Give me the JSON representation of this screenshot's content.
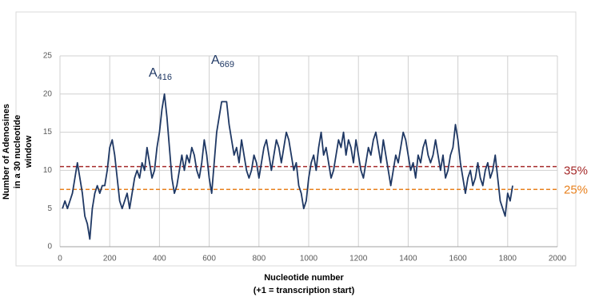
{
  "chart_data": {
    "type": "line",
    "y_label": [
      "Number of Adenosines",
      "in a 30 nucleotide",
      "window"
    ],
    "x_label": [
      "Nucleotide number",
      "(+1 = transcription start)"
    ],
    "annotations": [
      {
        "text": "A",
        "subscript": "416"
      },
      {
        "text": "A",
        "subscript": "669"
      }
    ],
    "color": "#1f3864",
    "x": [
      10,
      20,
      30,
      40,
      50,
      60,
      70,
      80,
      90,
      100,
      110,
      120,
      130,
      140,
      150,
      160,
      170,
      180,
      190,
      200,
      210,
      220,
      230,
      240,
      250,
      260,
      270,
      280,
      290,
      300,
      310,
      320,
      330,
      340,
      350,
      360,
      370,
      380,
      390,
      400,
      410,
      420,
      430,
      440,
      450,
      460,
      470,
      480,
      490,
      500,
      510,
      520,
      530,
      540,
      550,
      560,
      570,
      580,
      590,
      600,
      610,
      620,
      630,
      640,
      650,
      660,
      670,
      680,
      690,
      700,
      710,
      720,
      730,
      740,
      750,
      760,
      770,
      780,
      790,
      800,
      810,
      820,
      830,
      840,
      850,
      860,
      870,
      880,
      890,
      900,
      910,
      920,
      930,
      940,
      950,
      960,
      970,
      980,
      990,
      1000,
      1010,
      1020,
      1030,
      1040,
      1050,
      1060,
      1070,
      1080,
      1090,
      1100,
      1110,
      1120,
      1130,
      1140,
      1150,
      1160,
      1170,
      1180,
      1190,
      1200,
      1210,
      1220,
      1230,
      1240,
      1250,
      1260,
      1270,
      1280,
      1290,
      1300,
      1310,
      1320,
      1330,
      1340,
      1350,
      1360,
      1370,
      1380,
      1390,
      1400,
      1410,
      1420,
      1430,
      1440,
      1450,
      1460,
      1470,
      1480,
      1490,
      1500,
      1510,
      1520,
      1530,
      1540,
      1550,
      1560,
      1570,
      1580,
      1590,
      1600,
      1610,
      1620,
      1630,
      1640,
      1650,
      1660,
      1670,
      1680,
      1690,
      1700,
      1710,
      1720,
      1730,
      1740,
      1750,
      1760,
      1770,
      1780,
      1790,
      1800,
      1810,
      1820
    ],
    "values": [
      5,
      6,
      5,
      6,
      7,
      9,
      11,
      9,
      7,
      4,
      3,
      1,
      5,
      7,
      8,
      7,
      8,
      8,
      10,
      13,
      14,
      12,
      9,
      6,
      5,
      6,
      7,
      5,
      7,
      9,
      10,
      9,
      11,
      10,
      13,
      11,
      9,
      10,
      13,
      15,
      18,
      20,
      17,
      13,
      9,
      7,
      8,
      10,
      12,
      10,
      12,
      11,
      13,
      12,
      10,
      9,
      11,
      14,
      12,
      9,
      7,
      11,
      15,
      17,
      19,
      19,
      19,
      16,
      14,
      12,
      13,
      11,
      14,
      12,
      10,
      9,
      10,
      12,
      11,
      9,
      11,
      13,
      14,
      12,
      10,
      12,
      14,
      13,
      11,
      13,
      15,
      14,
      12,
      10,
      11,
      8,
      7,
      5,
      6,
      9,
      11,
      12,
      10,
      13,
      15,
      12,
      13,
      11,
      9,
      10,
      12,
      14,
      13,
      15,
      12,
      14,
      13,
      11,
      14,
      12,
      10,
      9,
      11,
      13,
      12,
      14,
      15,
      13,
      11,
      14,
      12,
      10,
      8,
      10,
      12,
      11,
      13,
      15,
      14,
      12,
      10,
      11,
      9,
      12,
      11,
      13,
      14,
      12,
      11,
      12,
      14,
      12,
      10,
      12,
      9,
      10,
      12,
      13,
      16,
      14,
      11,
      9,
      7,
      9,
      10,
      8,
      9,
      11,
      9,
      8,
      10,
      11,
      9,
      10,
      12,
      9,
      6,
      5,
      4,
      7,
      6,
      8
    ],
    "reference_lines": [
      {
        "value": 10.5,
        "label": "35%",
        "color": "#a52a2a"
      },
      {
        "value": 7.5,
        "label": "25%",
        "color": "#e8811e"
      }
    ],
    "xlim": [
      0,
      2000
    ],
    "xticks": [
      0,
      200,
      400,
      600,
      800,
      1000,
      1200,
      1400,
      1600,
      1800,
      2000
    ],
    "ylim": [
      0,
      25
    ],
    "yticks": [
      0,
      5,
      10,
      15,
      20,
      25
    ],
    "grid": true
  }
}
